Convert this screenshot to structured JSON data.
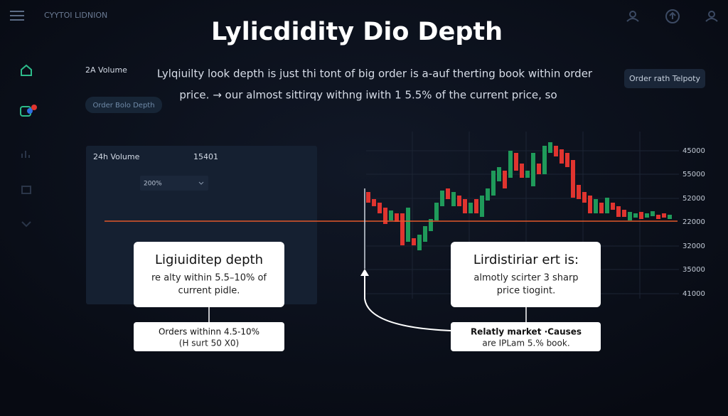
{
  "header": {
    "brand": "CYYTOI LIDNION",
    "title": "Lylicdidity Dio Depth"
  },
  "intro": {
    "label": "2A Volume",
    "lines": [
      "Lylqiuilty look depth is just thi tont of big order is a-auf therting book within order",
      "price. → our almost sittirqy withng iwith 1 5.5% of the current price, so"
    ],
    "left_button": "Order Bolo Depth",
    "right_button": "Order rath Telpoty"
  },
  "panel": {
    "label": "24h Volume",
    "value": "15401",
    "dropdown": "200%"
  },
  "chart": {
    "axis_labels": [
      "45000",
      "55000",
      "52000",
      "22000",
      "32000",
      "35000",
      "41000"
    ]
  },
  "callouts": [
    {
      "title": "Ligiuiditep depth",
      "lines": [
        "re alty within 5.5–10% of",
        "current pidle."
      ]
    },
    {
      "lines": [
        "Orders withinn 4.5-10%",
        "(H surt 50 X0)"
      ]
    },
    {
      "title": "Lirdistiriar ert is:",
      "lines": [
        "almotly scirter 3 sharp",
        "price tiogint."
      ]
    },
    {
      "lines": [
        "Relatly market ·Causes",
        "are IPLam 5.% book."
      ]
    }
  ]
}
